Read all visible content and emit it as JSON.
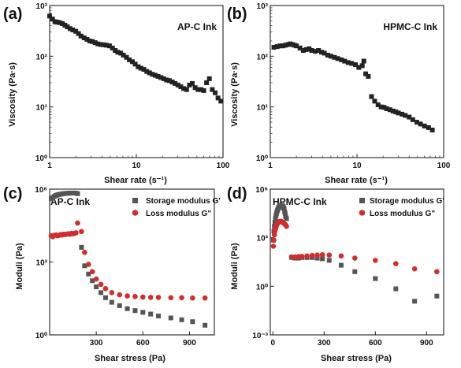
{
  "figure": {
    "colors": {
      "black": "#222222",
      "gray": "#555555",
      "red": "#d22d2d"
    }
  },
  "chart_data": [
    {
      "panel": "(a)",
      "type": "scatter",
      "title": "AP-C Ink",
      "xlabel": "Shear rate (s⁻¹)",
      "ylabel": "Viscosity (Pa·s)",
      "xscale": "log",
      "yscale": "log",
      "xlim": [
        1,
        100
      ],
      "ylim": [
        1,
        1000
      ],
      "xticks": [
        1,
        10,
        100
      ],
      "xtick_labels": [
        "1",
        "10",
        "100"
      ],
      "yticks": [
        1,
        10,
        100,
        1000
      ],
      "ytick_labels": [
        "10⁰",
        "10¹",
        "10²",
        "10³"
      ],
      "grid": false,
      "series": [
        {
          "marker": "square",
          "color": "#222222",
          "x": [
            1.0,
            1.08,
            1.15,
            1.22,
            1.3,
            1.4,
            1.5,
            1.6,
            1.72,
            1.85,
            2.0,
            2.15,
            2.3,
            2.5,
            2.7,
            2.9,
            3.1,
            3.35,
            3.6,
            3.9,
            4.2,
            4.5,
            4.9,
            5.3,
            5.7,
            6.1,
            6.6,
            7.1,
            7.7,
            8.3,
            9.0,
            9.7,
            10.5,
            11.3,
            12.2,
            13.2,
            14.2,
            15.3,
            16.5,
            17.8,
            19.2,
            20.7,
            22.3,
            24.1,
            26.0,
            28.0,
            30.2,
            32.6,
            35.2,
            38.0,
            41.0,
            44.2,
            47.7,
            51.5,
            55.5,
            59.9,
            64.6,
            69.7,
            75.2,
            81.2,
            87.6,
            94.5
          ],
          "y": [
            620,
            540,
            480,
            470,
            460,
            440,
            410,
            380,
            350,
            330,
            310,
            280,
            250,
            230,
            215,
            200,
            195,
            185,
            175,
            170,
            168,
            165,
            160,
            145,
            130,
            120,
            115,
            105,
            95,
            85,
            78,
            70,
            62,
            58,
            55,
            50,
            47,
            44,
            42,
            40,
            38,
            36,
            34,
            33,
            31,
            29,
            27,
            25,
            23,
            22,
            27,
            29,
            24,
            22,
            22,
            21,
            30,
            36,
            22,
            19,
            15,
            13
          ]
        }
      ]
    },
    {
      "panel": "(b)",
      "type": "scatter",
      "title": "HPMC-C Ink",
      "xlabel": "Shear rate (s⁻¹)",
      "ylabel": "Viscosity (Pa·s)",
      "xscale": "log",
      "yscale": "log",
      "xlim": [
        1,
        100
      ],
      "ylim": [
        1,
        1000
      ],
      "xticks": [
        1,
        10,
        100
      ],
      "xtick_labels": [
        "1",
        "10",
        "100"
      ],
      "yticks": [
        1,
        10,
        100,
        1000
      ],
      "ytick_labels": [
        "10⁰",
        "10¹",
        "10²",
        "10³"
      ],
      "grid": false,
      "series": [
        {
          "marker": "square",
          "color": "#222222",
          "x": [
            1.1,
            1.2,
            1.3,
            1.4,
            1.5,
            1.6,
            1.7,
            1.8,
            1.9,
            2.0,
            2.2,
            2.4,
            2.6,
            2.8,
            3.0,
            3.3,
            3.6,
            3.9,
            4.2,
            4.6,
            5.0,
            5.5,
            6.0,
            6.6,
            7.2,
            7.9,
            8.7,
            9.6,
            10.5,
            11.5,
            12.0,
            12.6,
            13.5,
            14.7,
            16.0,
            17.5,
            19.0,
            20.5,
            22.0,
            24.0,
            26.0,
            28.0,
            30.0,
            33.0,
            36.0,
            40.0,
            44.0,
            49.0,
            54.0,
            60.0,
            67.0,
            74.0
          ],
          "y": [
            150,
            155,
            160,
            160,
            165,
            170,
            175,
            170,
            165,
            160,
            145,
            130,
            135,
            140,
            130,
            125,
            130,
            120,
            115,
            105,
            100,
            95,
            90,
            85,
            80,
            75,
            72,
            68,
            60,
            65,
            80,
            45,
            40,
            16,
            13,
            11,
            10,
            9.8,
            9.2,
            8.8,
            8.3,
            8.0,
            7.6,
            7.2,
            6.8,
            6.3,
            5.6,
            5.0,
            4.6,
            4.2,
            3.9,
            3.5
          ]
        }
      ]
    },
    {
      "panel": "(c)",
      "type": "scatter",
      "title": "AP-C Ink",
      "xlabel": "Shear stress (Pa)",
      "ylabel": "Moduli (Pa)",
      "xscale": "linear",
      "yscale": "log",
      "xlim": [
        0,
        1060
      ],
      "ylim": [
        1,
        1000000
      ],
      "xticks": [
        300,
        600,
        900
      ],
      "xtick_labels": [
        "300",
        "600",
        "900"
      ],
      "yticks": [
        1,
        1000,
        1000000
      ],
      "ytick_labels": [
        "10⁰",
        "10³",
        "10⁶"
      ],
      "grid": false,
      "legend": "top-right",
      "series": [
        {
          "name": "Storage modulus Gʹ",
          "marker": "square",
          "color": "#555555",
          "x": [
            10,
            20,
            30,
            40,
            50,
            60,
            70,
            80,
            90,
            100,
            110,
            120,
            130,
            140,
            150,
            160,
            170,
            180,
            205,
            225,
            250,
            275,
            300,
            330,
            360,
            400,
            450,
            500,
            550,
            600,
            650,
            700,
            780,
            850,
            920,
            1000
          ],
          "y": [
            400000,
            450000,
            500000,
            550000,
            580000,
            600000,
            620000,
            640000,
            650000,
            660000,
            670000,
            680000,
            680000,
            690000,
            690000,
            690000,
            680000,
            650000,
            4000,
            700,
            320,
            170,
            95,
            55,
            34,
            22,
            16,
            12,
            10,
            8.5,
            7.2,
            6,
            5,
            4.2,
            3.5,
            2.5
          ]
        },
        {
          "name": "Loss modulus Gʺ",
          "marker": "circle",
          "color": "#d22d2d",
          "x": [
            10,
            20,
            30,
            40,
            50,
            60,
            70,
            80,
            90,
            100,
            110,
            120,
            130,
            140,
            150,
            160,
            170,
            180,
            205,
            225,
            250,
            275,
            300,
            330,
            360,
            400,
            450,
            500,
            550,
            600,
            650,
            700,
            780,
            850,
            920,
            1000
          ],
          "y": [
            12000,
            11000,
            12500,
            13000,
            12000,
            12500,
            13500,
            13000,
            14000,
            13500,
            14000,
            14500,
            14000,
            15000,
            14500,
            15000,
            16000,
            40000,
            18000,
            2500,
            800,
            400,
            200,
            120,
            80,
            55,
            45,
            40,
            38,
            36,
            35,
            35,
            34,
            34,
            33,
            33
          ]
        }
      ]
    },
    {
      "panel": "(d)",
      "type": "scatter",
      "title": "HPMC-C Ink",
      "xlabel": "Shear stress (Pa)",
      "ylabel": "Moduli (Pa)",
      "xscale": "linear",
      "yscale": "log",
      "xlim": [
        -15,
        1000
      ],
      "ylim": [
        0.001,
        1000000
      ],
      "xticks": [
        0,
        300,
        600,
        900
      ],
      "xtick_labels": [
        "0",
        "300",
        "600",
        "900"
      ],
      "yticks": [
        0.001,
        1,
        1000,
        1000000
      ],
      "ytick_labels": [
        "10⁻³",
        "10⁰",
        "10³",
        "10⁶"
      ],
      "grid": false,
      "legend": "top-right",
      "series": [
        {
          "name": "Storage modulus Gʹ",
          "marker": "square",
          "color": "#555555",
          "x": [
            3,
            6,
            9,
            12,
            15,
            18,
            21,
            24,
            27,
            30,
            33,
            36,
            39,
            42,
            45,
            48,
            51,
            54,
            57,
            60,
            63,
            66,
            69,
            72,
            75,
            80,
            110,
            130,
            150,
            170,
            200,
            230,
            260,
            290,
            330,
            400,
            480,
            600,
            720,
            830,
            960
          ],
          "y": [
            700,
            2500,
            5000,
            9000,
            15000,
            22000,
            30000,
            40000,
            50000,
            60000,
            70000,
            80000,
            90000,
            95000,
            100000,
            100000,
            100000,
            95000,
            90000,
            80000,
            70000,
            60000,
            40000,
            30000,
            20000,
            15000,
            60,
            55,
            55,
            60,
            60,
            60,
            55,
            50,
            40,
            20,
            8,
            3,
            0.7,
            0.12,
            0.25
          ]
        },
        {
          "name": "Loss modulus Gʺ",
          "marker": "circle",
          "color": "#d22d2d",
          "x": [
            3,
            6,
            9,
            12,
            15,
            18,
            21,
            24,
            27,
            30,
            33,
            36,
            39,
            42,
            45,
            48,
            51,
            54,
            57,
            60,
            63,
            66,
            69,
            72,
            75,
            80,
            110,
            130,
            150,
            170,
            200,
            230,
            260,
            290,
            330,
            400,
            480,
            600,
            720,
            830,
            960
          ],
          "y": [
            300,
            700,
            1500,
            2500,
            3500,
            4500,
            5500,
            6500,
            7500,
            8500,
            9000,
            9500,
            10000,
            10000,
            10000,
            10000,
            10000,
            9500,
            9000,
            8500,
            8000,
            7500,
            7000,
            6500,
            6000,
            5000,
            65,
            65,
            68,
            70,
            75,
            80,
            85,
            90,
            85,
            75,
            55,
            40,
            25,
            12,
            8
          ]
        }
      ]
    }
  ]
}
